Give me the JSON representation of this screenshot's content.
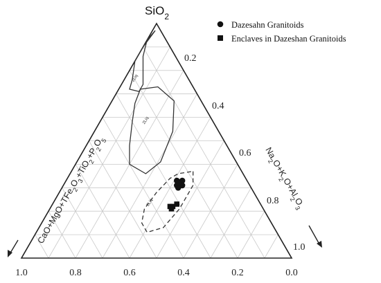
{
  "chart_data": {
    "type": "ternary",
    "apex_labels": {
      "top": "SiO2"
    },
    "axis_labels": {
      "left": "CaO+MgO+TFe2O3+TiO2+P2O5",
      "right": "Na2O+K2O+Al2O3"
    },
    "right_ticks": [
      "0.2",
      "0.4",
      "0.6",
      "0.8",
      "1.0"
    ],
    "bottom_ticks": [
      "1.0",
      "0.8",
      "0.6",
      "0.4",
      "0.2",
      "0.0"
    ],
    "grid": true,
    "legend_position": "top-right",
    "legend": [
      {
        "label": "Dazesahn  Granitoids",
        "marker": "circle"
      },
      {
        "label": "Enclaves in Dazeshan Granitoids",
        "marker": "square"
      }
    ],
    "field_labels": [
      "2Liq",
      "2Liq",
      "2Liq"
    ],
    "series": [
      {
        "name": "Dazesahn  Granitoids",
        "marker": "circle",
        "points": [
          {
            "a": 0.33,
            "b": 0.41
          },
          {
            "a": 0.32,
            "b": 0.42
          },
          {
            "a": 0.31,
            "b": 0.42
          },
          {
            "a": 0.33,
            "b": 0.43
          },
          {
            "a": 0.32,
            "b": 0.43
          },
          {
            "a": 0.31,
            "b": 0.44
          },
          {
            "a": 0.3,
            "b": 0.43
          },
          {
            "a": 0.32,
            "b": 0.42
          }
        ]
      },
      {
        "name": "Enclaves in Dazeshan Granitoids",
        "marker": "square",
        "points": [
          {
            "a": 0.22,
            "b": 0.44
          },
          {
            "a": 0.22,
            "b": 0.45
          },
          {
            "a": 0.21,
            "b": 0.45
          },
          {
            "a": 0.23,
            "b": 0.46
          }
        ]
      }
    ]
  }
}
